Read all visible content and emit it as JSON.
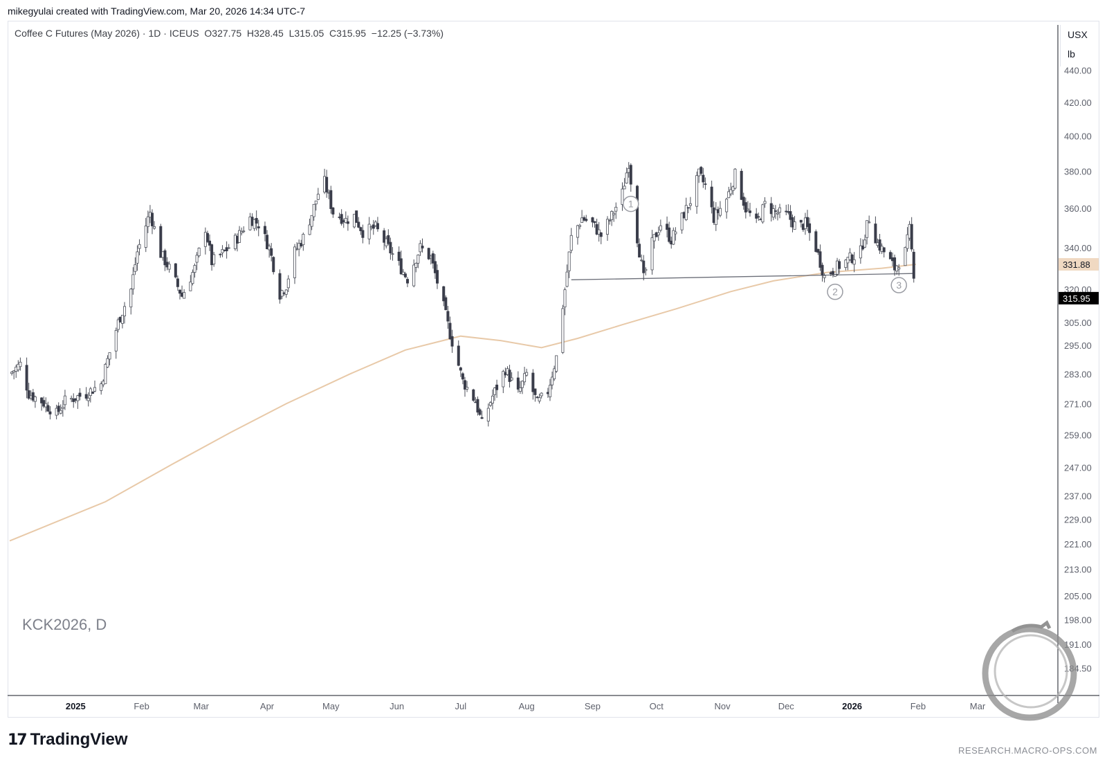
{
  "attribution": "mikegyulai created with TradingView.com, Mar 20, 2026 14:34 UTC-7",
  "legend": {
    "name": "Coffee C Futures (May 2026) · 1D · ICEUS",
    "open_label": "O",
    "open": "327.75",
    "high_label": "H",
    "high": "328.45",
    "low_label": "L",
    "low": "315.05",
    "close_label": "C",
    "close": "315.95",
    "change": "−12.25 (−3.73%)"
  },
  "unit": {
    "currency": "USX",
    "per": "lb"
  },
  "symbol_watermark": "KCK2026, D",
  "branding": {
    "logo_mark": "17",
    "logo_text": "TradingView",
    "url": "RESEARCH.MACRO-OPS.COM"
  },
  "annotations": [
    {
      "label": "1",
      "date": "2025-09-19"
    },
    {
      "label": "2",
      "date": "2025-12-24"
    },
    {
      "label": "3",
      "date": "2026-01-23"
    }
  ],
  "colors": {
    "up_candle": "#ffffff",
    "down_candle": "#3a3d4a",
    "wick": "#4a4d57",
    "moving_average": "#e8c9a8",
    "neckline": "#6b6e78",
    "last_price_tag": "#000000",
    "ma_price_tag": "#f0d9c2",
    "annotation": "#9a9ca3"
  },
  "chart_data": {
    "type": "candlestick",
    "title": "Coffee C Futures (May 2026) · 1D · ICEUS",
    "y_scale": "log",
    "ylim": [
      180,
      452
    ],
    "xlim": [
      "2024-12-01",
      "2026-03-28"
    ],
    "y_ticks": [
      "440.00",
      "420.00",
      "400.00",
      "380.00",
      "360.00",
      "340.00",
      "320.00",
      "305.00",
      "295.00",
      "283.00",
      "271.00",
      "259.00",
      "247.00",
      "237.00",
      "229.00",
      "221.00",
      "213.00",
      "205.00",
      "198.00",
      "191.00",
      "184.50"
    ],
    "x_ticks": [
      {
        "label": "2025",
        "date": "2025-01-01",
        "bold": true
      },
      {
        "label": "Feb",
        "date": "2025-02-01"
      },
      {
        "label": "Mar",
        "date": "2025-03-01"
      },
      {
        "label": "Apr",
        "date": "2025-04-01"
      },
      {
        "label": "May",
        "date": "2025-05-01"
      },
      {
        "label": "Jun",
        "date": "2025-06-01"
      },
      {
        "label": "Jul",
        "date": "2025-07-01"
      },
      {
        "label": "Aug",
        "date": "2025-08-01"
      },
      {
        "label": "Sep",
        "date": "2025-09-01"
      },
      {
        "label": "Oct",
        "date": "2025-10-01"
      },
      {
        "label": "Nov",
        "date": "2025-11-01"
      },
      {
        "label": "Dec",
        "date": "2025-12-01"
      },
      {
        "label": "2026",
        "date": "2026-01-01",
        "bold": true
      },
      {
        "label": "Feb",
        "date": "2026-02-01"
      },
      {
        "label": "Mar",
        "date": "2026-03-01"
      }
    ],
    "last_price": "315.95",
    "ma_value": "331.88",
    "neckline": [
      {
        "date": "2025-08-22",
        "value": 324.5
      },
      {
        "date": "2026-01-30",
        "value": 327.5
      }
    ],
    "close_path": [
      [
        "2024-12-01",
        283
      ],
      [
        "2024-12-06",
        287
      ],
      [
        "2024-12-10",
        275
      ],
      [
        "2024-12-16",
        272
      ],
      [
        "2024-12-23",
        267
      ],
      [
        "2024-12-27",
        272
      ],
      [
        "2025-01-06",
        275
      ],
      [
        "2025-01-13",
        279
      ],
      [
        "2025-01-17",
        292
      ],
      [
        "2025-01-21",
        305
      ],
      [
        "2025-01-27",
        320
      ],
      [
        "2025-01-30",
        338
      ],
      [
        "2025-02-05",
        358
      ],
      [
        "2025-02-10",
        337
      ],
      [
        "2025-02-14",
        330
      ],
      [
        "2025-02-20",
        317
      ],
      [
        "2025-02-26",
        330
      ],
      [
        "2025-03-03",
        350
      ],
      [
        "2025-03-06",
        333
      ],
      [
        "2025-03-12",
        338
      ],
      [
        "2025-03-18",
        345
      ],
      [
        "2025-03-24",
        355
      ],
      [
        "2025-03-28",
        352
      ],
      [
        "2025-04-02",
        340
      ],
      [
        "2025-04-07",
        318
      ],
      [
        "2025-04-10",
        322
      ],
      [
        "2025-04-14",
        338
      ],
      [
        "2025-04-18",
        345
      ],
      [
        "2025-04-22",
        357
      ],
      [
        "2025-04-25",
        368
      ],
      [
        "2025-04-28",
        374
      ],
      [
        "2025-05-02",
        358
      ],
      [
        "2025-05-08",
        354
      ],
      [
        "2025-05-12",
        356
      ],
      [
        "2025-05-16",
        348
      ],
      [
        "2025-05-22",
        350
      ],
      [
        "2025-05-28",
        340
      ],
      [
        "2025-06-03",
        330
      ],
      [
        "2025-06-06",
        325
      ],
      [
        "2025-06-12",
        340
      ],
      [
        "2025-06-17",
        335
      ],
      [
        "2025-06-23",
        312
      ],
      [
        "2025-06-26",
        300
      ],
      [
        "2025-07-02",
        280
      ],
      [
        "2025-07-08",
        272
      ],
      [
        "2025-07-11",
        263
      ],
      [
        "2025-07-16",
        274
      ],
      [
        "2025-07-22",
        285
      ],
      [
        "2025-07-28",
        275
      ],
      [
        "2025-08-01",
        283
      ],
      [
        "2025-08-06",
        271
      ],
      [
        "2025-08-11",
        276
      ],
      [
        "2025-08-15",
        290
      ],
      [
        "2025-08-19",
        320
      ],
      [
        "2025-08-22",
        345
      ],
      [
        "2025-08-27",
        355
      ],
      [
        "2025-09-01",
        352
      ],
      [
        "2025-09-05",
        346
      ],
      [
        "2025-09-10",
        356
      ],
      [
        "2025-09-15",
        368
      ],
      [
        "2025-09-18",
        385
      ],
      [
        "2025-09-22",
        345
      ],
      [
        "2025-09-25",
        325
      ],
      [
        "2025-09-29",
        342
      ],
      [
        "2025-10-03",
        352
      ],
      [
        "2025-10-08",
        344
      ],
      [
        "2025-10-13",
        355
      ],
      [
        "2025-10-17",
        364
      ],
      [
        "2025-10-21",
        378
      ],
      [
        "2025-10-24",
        372
      ],
      [
        "2025-10-28",
        355
      ],
      [
        "2025-11-03",
        365
      ],
      [
        "2025-11-07",
        378
      ],
      [
        "2025-11-12",
        360
      ],
      [
        "2025-11-17",
        352
      ],
      [
        "2025-11-21",
        362
      ],
      [
        "2025-11-26",
        358
      ],
      [
        "2025-12-02",
        356
      ],
      [
        "2025-12-06",
        350
      ],
      [
        "2025-12-10",
        352
      ],
      [
        "2025-12-15",
        340
      ],
      [
        "2025-12-19",
        326
      ],
      [
        "2025-12-24",
        330
      ],
      [
        "2025-12-30",
        334
      ],
      [
        "2026-01-05",
        338
      ],
      [
        "2026-01-09",
        355
      ],
      [
        "2026-01-13",
        342
      ],
      [
        "2026-01-16",
        338
      ],
      [
        "2026-01-21",
        330
      ],
      [
        "2026-01-26",
        338
      ],
      [
        "2026-01-28",
        349
      ],
      [
        "2026-01-30",
        327.75
      ],
      [
        "2026-01-31",
        315.95
      ]
    ],
    "ma_path": [
      [
        "2024-12-01",
        222
      ],
      [
        "2025-01-15",
        235
      ],
      [
        "2025-02-15",
        248
      ],
      [
        "2025-03-15",
        260
      ],
      [
        "2025-04-10",
        271
      ],
      [
        "2025-05-10",
        283
      ],
      [
        "2025-06-05",
        293
      ],
      [
        "2025-07-01",
        299
      ],
      [
        "2025-07-20",
        297
      ],
      [
        "2025-08-08",
        294
      ],
      [
        "2025-08-25",
        298
      ],
      [
        "2025-09-15",
        304
      ],
      [
        "2025-10-10",
        311
      ],
      [
        "2025-11-05",
        319
      ],
      [
        "2025-11-25",
        324
      ],
      [
        "2025-12-20",
        328
      ],
      [
        "2026-01-15",
        330
      ],
      [
        "2026-01-31",
        331.88
      ]
    ]
  }
}
